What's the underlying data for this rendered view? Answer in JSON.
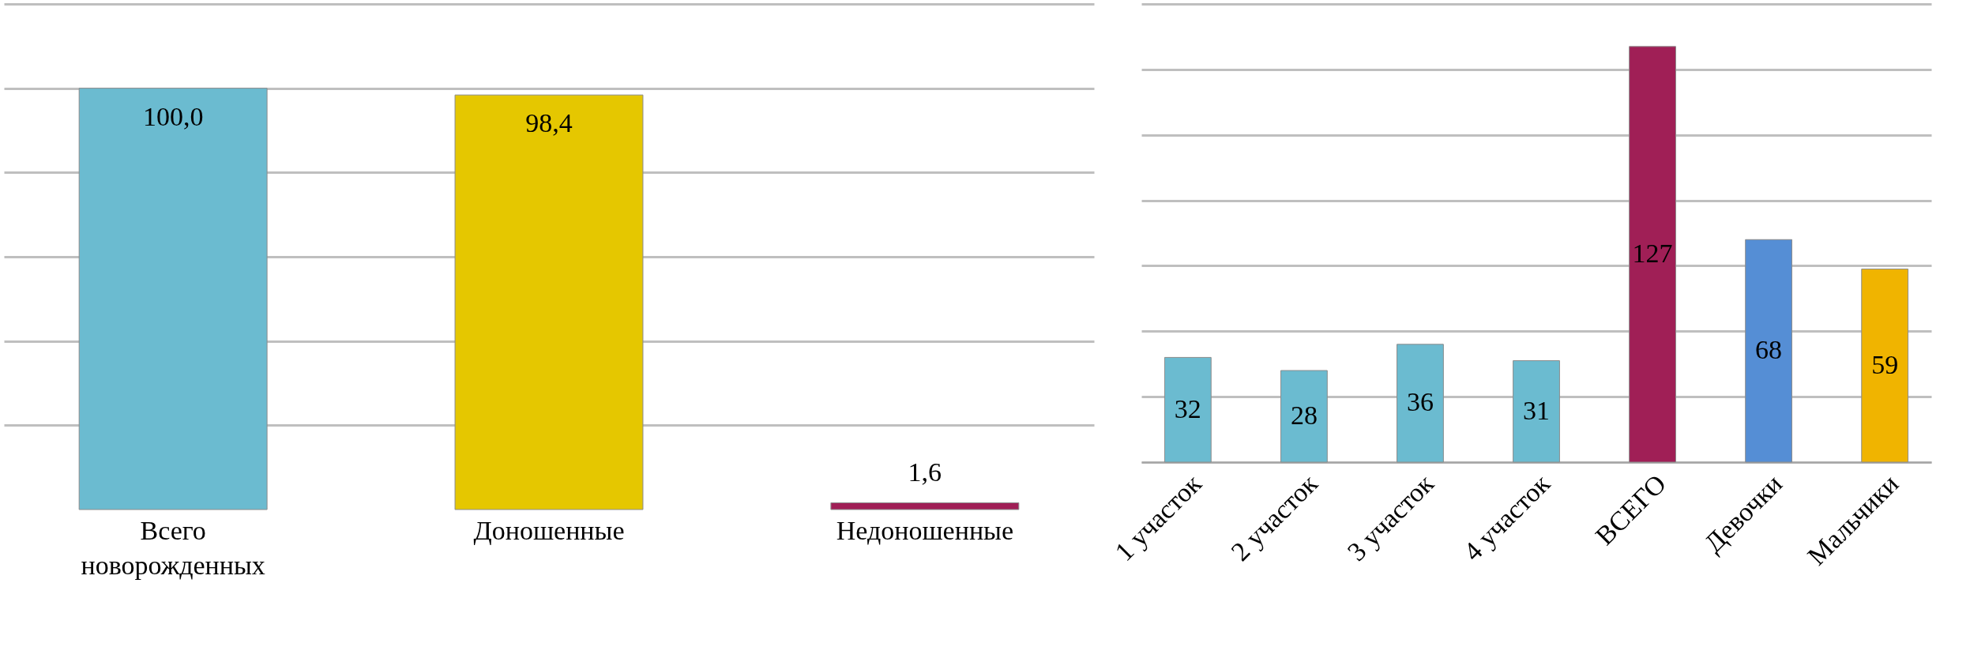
{
  "chart_data": [
    {
      "type": "bar",
      "categories": [
        "Всего новорожденных",
        "Доношенные",
        "Недоношенные"
      ],
      "values": [
        100.0,
        98.4,
        1.6
      ],
      "colors": [
        "#6bbbd0",
        "#e5c700",
        "#a01f56"
      ],
      "value_labels": [
        "100,0",
        "98,4",
        "1,6"
      ],
      "ylim": [
        0,
        120
      ],
      "yticks": [
        {
          "value": 20,
          "label": null
        },
        {
          "value": 40,
          "label": null
        },
        {
          "value": 60,
          "label": null
        },
        {
          "value": 80,
          "label": null
        },
        {
          "value": 100,
          "label": null
        },
        {
          "value": 120,
          "label": null
        }
      ],
      "grid": "y",
      "tick_labels": "x"
    },
    {
      "type": "bar",
      "categories": [
        "1 участок",
        "2 участок",
        "3 участок",
        "4 участок",
        "ВСЕГО",
        "Девочки",
        "Мальчики"
      ],
      "values": [
        32,
        28,
        36,
        31,
        127,
        68,
        59
      ],
      "colors": [
        "#6bbbd0",
        "#6bbbd0",
        "#6bbbd0",
        "#6bbbd0",
        "#a01f56",
        "#558ed5",
        "#f0b400"
      ],
      "data_labels": true,
      "ylim": [
        0,
        140
      ],
      "yticks": [
        {
          "value": 0,
          "label": null
        },
        {
          "value": 20,
          "label": null
        },
        {
          "value": 40,
          "label": null
        },
        {
          "value": 60,
          "label": null
        },
        {
          "value": 80,
          "label": null
        },
        {
          "value": 100,
          "label": null
        },
        {
          "value": 120,
          "label": null
        },
        {
          "value": 140,
          "label": null
        }
      ],
      "grid": "y",
      "tick_labels": "x"
    }
  ]
}
